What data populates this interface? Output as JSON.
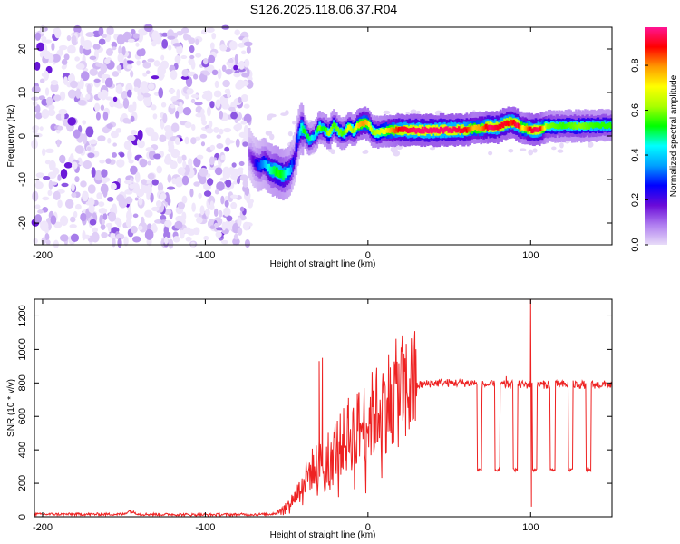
{
  "chart_data": [
    {
      "type": "heatmap",
      "title": "S126.2025.118.06.37.R04",
      "xlabel": "Height of straight line (km)",
      "ylabel": "Frequency (Hz)",
      "xlim": [
        -205,
        150
      ],
      "ylim": [
        -25,
        25
      ],
      "x_ticks": [
        -200,
        -100,
        0,
        100
      ],
      "y_ticks": [
        -20,
        -10,
        0,
        10,
        20
      ],
      "colorbar": {
        "label": "Normalized spectral amplitude",
        "range": [
          0,
          0.97
        ],
        "ticks": [
          0.0,
          0.2,
          0.4,
          0.6,
          0.8
        ],
        "colormap": [
          "#e8dcf8",
          "#b07ef0",
          "#6a0ad8",
          "#0000ff",
          "#00a0ff",
          "#00ffff",
          "#00ff00",
          "#aaff00",
          "#ffff00",
          "#ff9900",
          "#ff0000",
          "#ff1493"
        ]
      },
      "noise_region": {
        "x_range": [
          -205,
          -72
        ],
        "freq_range": [
          -25,
          25
        ],
        "amplitude_range": [
          0.0,
          0.12
        ]
      },
      "signal_track": {
        "x": [
          -73,
          -70,
          -67,
          -64,
          -61,
          -58,
          -55,
          -52,
          -50,
          -48,
          -45,
          -43,
          -41,
          -39,
          -36,
          -33,
          -30,
          -27,
          -24,
          -21,
          -18,
          -15,
          -12,
          -9,
          -6,
          -3,
          0,
          3,
          6,
          10,
          20,
          30,
          40,
          50,
          60,
          65,
          70,
          75,
          80,
          85,
          88,
          92,
          95,
          100,
          105,
          110,
          120,
          130,
          140,
          150
        ],
        "freq": [
          -4,
          -6,
          -7,
          -6,
          -7.5,
          -8,
          -8.5,
          -9,
          -8.5,
          -8,
          -5,
          0,
          2,
          1,
          -1,
          0,
          2,
          1.5,
          0.5,
          2.5,
          1,
          0.5,
          2,
          1.2,
          2.5,
          3,
          2.8,
          1,
          0.8,
          1.2,
          1.4,
          1.3,
          1.3,
          1.4,
          1.4,
          1.8,
          1.8,
          2.2,
          2.0,
          3.0,
          3.2,
          2.5,
          1.8,
          1.4,
          1.5,
          2.2,
          2.3,
          2.3,
          2.4,
          2.4
        ],
        "amplitude": [
          0.12,
          0.2,
          0.3,
          0.35,
          0.45,
          0.5,
          0.55,
          0.5,
          0.45,
          0.4,
          0.2,
          0.3,
          0.45,
          0.55,
          0.5,
          0.4,
          0.6,
          0.5,
          0.65,
          0.55,
          0.6,
          0.55,
          0.7,
          0.6,
          0.75,
          0.8,
          0.75,
          0.6,
          0.65,
          0.7,
          0.9,
          0.95,
          0.95,
          0.95,
          0.9,
          0.75,
          0.8,
          0.95,
          0.9,
          0.9,
          0.85,
          0.95,
          0.7,
          0.9,
          0.95,
          0.6,
          0.55,
          0.6,
          0.55,
          0.55
        ]
      }
    },
    {
      "type": "line",
      "xlabel": "Height of straight line (km)",
      "ylabel": "SNR (10 * v/v)",
      "xlim": [
        -205,
        150
      ],
      "ylim": [
        0,
        1300
      ],
      "x_ticks": [
        -200,
        -100,
        0,
        100
      ],
      "y_ticks": [
        0,
        200,
        400,
        600,
        800,
        1000,
        1200
      ],
      "color": "#ee2222",
      "series_envelope": {
        "x": [
          -205,
          -150,
          -147,
          -140,
          -100,
          -60,
          -55,
          -50,
          -45,
          -40,
          -35,
          -30,
          -25,
          -20,
          -15,
          -10,
          -5,
          0,
          5,
          10,
          15,
          20,
          25,
          30,
          40,
          50,
          60,
          67,
          70,
          100,
          110,
          150
        ],
        "y": [
          15,
          15,
          35,
          15,
          12,
          15,
          30,
          60,
          120,
          200,
          280,
          320,
          360,
          410,
          450,
          490,
          540,
          580,
          630,
          680,
          720,
          750,
          770,
          785,
          800,
          800,
          800,
          800,
          790,
          790,
          790,
          790
        ]
      },
      "spikes": [
        {
          "x": -30,
          "y": 930
        },
        {
          "x": -28,
          "y": 950
        },
        {
          "x": -12,
          "y": 710
        },
        {
          "x": 85,
          "y": 840
        },
        {
          "x": 100,
          "y": 1300
        },
        {
          "x": 100.5,
          "y": 60
        }
      ],
      "dropouts": [
        {
          "x_start": 67,
          "x_end": 70,
          "y": 280
        },
        {
          "x_start": 78,
          "x_end": 81,
          "y": 280
        },
        {
          "x_start": 89,
          "x_end": 92,
          "y": 280
        },
        {
          "x_start": 101,
          "x_end": 104,
          "y": 280
        },
        {
          "x_start": 112,
          "x_end": 115,
          "y": 280
        },
        {
          "x_start": 123,
          "x_end": 126,
          "y": 280
        },
        {
          "x_start": 134,
          "x_end": 137,
          "y": 280
        }
      ]
    }
  ]
}
